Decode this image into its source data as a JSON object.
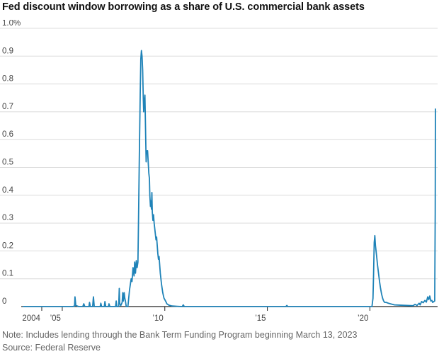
{
  "title": "Fed discount window borrowing as a share of U.S. commercial bank assets",
  "note": "Note: Includes lending through the Bank Term Funding Program beginning March 13, 2023",
  "source": "Source: Federal Reserve",
  "colors": {
    "line": "#1f83b8",
    "grid": "#dcdcdc",
    "axis": "#222222",
    "text": "#444444"
  },
  "chart_data": {
    "type": "line",
    "title": "Fed discount window borrowing as a share of U.S. commercial bank assets",
    "xlabel": "",
    "ylabel": "",
    "xlim": [
      2003.0,
      2023.3
    ],
    "ylim": [
      0,
      1.0
    ],
    "grid": true,
    "legend": "none",
    "y_ticks": [
      {
        "value": 1.0,
        "label": "1.0%"
      },
      {
        "value": 0.9,
        "label": "0.9"
      },
      {
        "value": 0.8,
        "label": "0.8"
      },
      {
        "value": 0.7,
        "label": "0.7"
      },
      {
        "value": 0.6,
        "label": "0.6"
      },
      {
        "value": 0.5,
        "label": "0.5"
      },
      {
        "value": 0.4,
        "label": "0.4"
      },
      {
        "value": 0.3,
        "label": "0.3"
      },
      {
        "value": 0.2,
        "label": "0.2"
      },
      {
        "value": 0.1,
        "label": "0.1"
      },
      {
        "value": 0,
        "label": "0"
      }
    ],
    "x_ticks": [
      {
        "value": 2004,
        "label": "2004"
      },
      {
        "value": 2005,
        "label": "’05"
      },
      {
        "value": 2010,
        "label": "’10"
      },
      {
        "value": 2015,
        "label": "’15"
      },
      {
        "value": 2020,
        "label": "’20"
      }
    ],
    "series": [
      {
        "values": [
          [
            2003.1,
            0.0
          ],
          [
            2004.0,
            0.0
          ],
          [
            2004.5,
            0.0
          ],
          [
            2005.0,
            0.0
          ],
          [
            2005.5,
            0.0
          ],
          [
            2005.6,
            0.002
          ],
          [
            2005.62,
            0.035
          ],
          [
            2005.66,
            0.004
          ],
          [
            2005.8,
            0.0
          ],
          [
            2006.0,
            0.0
          ],
          [
            2006.05,
            0.01
          ],
          [
            2006.1,
            0.0
          ],
          [
            2006.3,
            0.0
          ],
          [
            2006.33,
            0.015
          ],
          [
            2006.37,
            0.0
          ],
          [
            2006.48,
            0.0
          ],
          [
            2006.52,
            0.035
          ],
          [
            2006.56,
            0.0
          ],
          [
            2006.85,
            0.0
          ],
          [
            2006.88,
            0.012
          ],
          [
            2006.92,
            0.0
          ],
          [
            2007.05,
            0.0
          ],
          [
            2007.08,
            0.018
          ],
          [
            2007.12,
            0.0
          ],
          [
            2007.25,
            0.0
          ],
          [
            2007.28,
            0.01
          ],
          [
            2007.32,
            0.0
          ],
          [
            2007.6,
            0.0
          ],
          [
            2007.63,
            0.02
          ],
          [
            2007.66,
            0.0
          ],
          [
            2007.75,
            0.0
          ],
          [
            2007.78,
            0.065
          ],
          [
            2007.8,
            0.012
          ],
          [
            2007.85,
            0.003
          ],
          [
            2007.92,
            0.015
          ],
          [
            2007.95,
            0.05
          ],
          [
            2007.98,
            0.02
          ],
          [
            2008.02,
            0.05
          ],
          [
            2008.05,
            0.03
          ],
          [
            2008.08,
            0.02
          ],
          [
            2008.12,
            0.0
          ],
          [
            2008.2,
            0.0
          ],
          [
            2008.28,
            0.06
          ],
          [
            2008.32,
            0.08
          ],
          [
            2008.36,
            0.1
          ],
          [
            2008.4,
            0.09
          ],
          [
            2008.45,
            0.14
          ],
          [
            2008.5,
            0.11
          ],
          [
            2008.53,
            0.16
          ],
          [
            2008.57,
            0.12
          ],
          [
            2008.61,
            0.165
          ],
          [
            2008.65,
            0.14
          ],
          [
            2008.69,
            0.16
          ],
          [
            2008.72,
            0.32
          ],
          [
            2008.76,
            0.55
          ],
          [
            2008.8,
            0.76
          ],
          [
            2008.83,
            0.89
          ],
          [
            2008.86,
            0.92
          ],
          [
            2008.89,
            0.9
          ],
          [
            2008.92,
            0.85
          ],
          [
            2008.95,
            0.75
          ],
          [
            2008.97,
            0.7
          ],
          [
            2009.0,
            0.74
          ],
          [
            2009.03,
            0.76
          ],
          [
            2009.05,
            0.68
          ],
          [
            2009.07,
            0.6
          ],
          [
            2009.09,
            0.52
          ],
          [
            2009.11,
            0.56
          ],
          [
            2009.13,
            0.55
          ],
          [
            2009.16,
            0.56
          ],
          [
            2009.19,
            0.52
          ],
          [
            2009.22,
            0.48
          ],
          [
            2009.25,
            0.46
          ],
          [
            2009.27,
            0.4
          ],
          [
            2009.3,
            0.36
          ],
          [
            2009.32,
            0.38
          ],
          [
            2009.35,
            0.35
          ],
          [
            2009.37,
            0.41
          ],
          [
            2009.39,
            0.34
          ],
          [
            2009.42,
            0.31
          ],
          [
            2009.45,
            0.33
          ],
          [
            2009.48,
            0.3
          ],
          [
            2009.51,
            0.28
          ],
          [
            2009.54,
            0.26
          ],
          [
            2009.57,
            0.24
          ],
          [
            2009.6,
            0.25
          ],
          [
            2009.63,
            0.22
          ],
          [
            2009.66,
            0.19
          ],
          [
            2009.69,
            0.17
          ],
          [
            2009.72,
            0.18
          ],
          [
            2009.75,
            0.15
          ],
          [
            2009.78,
            0.12
          ],
          [
            2009.81,
            0.1
          ],
          [
            2009.84,
            0.08
          ],
          [
            2009.87,
            0.065
          ],
          [
            2009.9,
            0.05
          ],
          [
            2009.93,
            0.04
          ],
          [
            2009.96,
            0.03
          ],
          [
            2010.0,
            0.025
          ],
          [
            2010.05,
            0.018
          ],
          [
            2010.1,
            0.01
          ],
          [
            2010.2,
            0.005
          ],
          [
            2010.35,
            0.002
          ],
          [
            2010.6,
            0.001
          ],
          [
            2010.85,
            0.0
          ],
          [
            2010.9,
            0.006
          ],
          [
            2010.95,
            0.0
          ],
          [
            2012.0,
            0.0
          ],
          [
            2014.0,
            0.0
          ],
          [
            2015.9,
            0.0
          ],
          [
            2015.95,
            0.004
          ],
          [
            2016.0,
            0.0
          ],
          [
            2018.0,
            0.0
          ],
          [
            2020.0,
            0.0
          ],
          [
            2020.1,
            0.0
          ],
          [
            2020.15,
            0.03
          ],
          [
            2020.18,
            0.12
          ],
          [
            2020.21,
            0.23
          ],
          [
            2020.24,
            0.255
          ],
          [
            2020.27,
            0.22
          ],
          [
            2020.3,
            0.2
          ],
          [
            2020.33,
            0.18
          ],
          [
            2020.37,
            0.15
          ],
          [
            2020.42,
            0.12
          ],
          [
            2020.47,
            0.09
          ],
          [
            2020.52,
            0.065
          ],
          [
            2020.57,
            0.045
          ],
          [
            2020.62,
            0.03
          ],
          [
            2020.67,
            0.02
          ],
          [
            2020.72,
            0.015
          ],
          [
            2020.8,
            0.015
          ],
          [
            2020.9,
            0.012
          ],
          [
            2021.0,
            0.01
          ],
          [
            2021.2,
            0.006
          ],
          [
            2021.5,
            0.005
          ],
          [
            2021.8,
            0.004
          ],
          [
            2022.1,
            0.003
          ],
          [
            2022.2,
            0.008
          ],
          [
            2022.3,
            0.004
          ],
          [
            2022.4,
            0.012
          ],
          [
            2022.45,
            0.006
          ],
          [
            2022.52,
            0.018
          ],
          [
            2022.6,
            0.014
          ],
          [
            2022.68,
            0.022
          ],
          [
            2022.75,
            0.016
          ],
          [
            2022.82,
            0.035
          ],
          [
            2022.87,
            0.025
          ],
          [
            2022.92,
            0.038
          ],
          [
            2022.97,
            0.02
          ],
          [
            2023.02,
            0.022
          ],
          [
            2023.06,
            0.015
          ],
          [
            2023.12,
            0.018
          ],
          [
            2023.16,
            0.02
          ],
          [
            2023.185,
            0.34
          ],
          [
            2023.195,
            0.71
          ]
        ]
      }
    ]
  }
}
